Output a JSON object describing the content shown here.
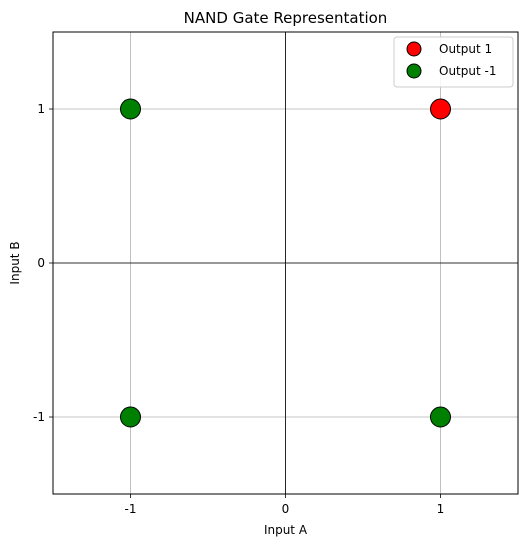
{
  "chart_data": {
    "type": "scatter",
    "title": "NAND Gate Representation",
    "xlabel": "Input A",
    "ylabel": "Input B",
    "xlim": [
      -1.5,
      1.5
    ],
    "ylim": [
      -1.5,
      1.5
    ],
    "xticks": [
      -1,
      0,
      1
    ],
    "yticks": [
      -1,
      0,
      1
    ],
    "xtick_labels": [
      "-1",
      "0",
      "1"
    ],
    "ytick_labels": [
      "-1",
      "0",
      "1"
    ],
    "grid": true,
    "zero_lines": true,
    "legend_position": "top-right",
    "series": [
      {
        "name": "Output 1",
        "color": "#ff0000",
        "points": [
          {
            "x": 1,
            "y": 1
          }
        ]
      },
      {
        "name": "Output -1",
        "color": "#008000",
        "points": [
          {
            "x": -1,
            "y": 1
          },
          {
            "x": -1,
            "y": -1
          },
          {
            "x": 1,
            "y": -1
          }
        ]
      }
    ]
  }
}
